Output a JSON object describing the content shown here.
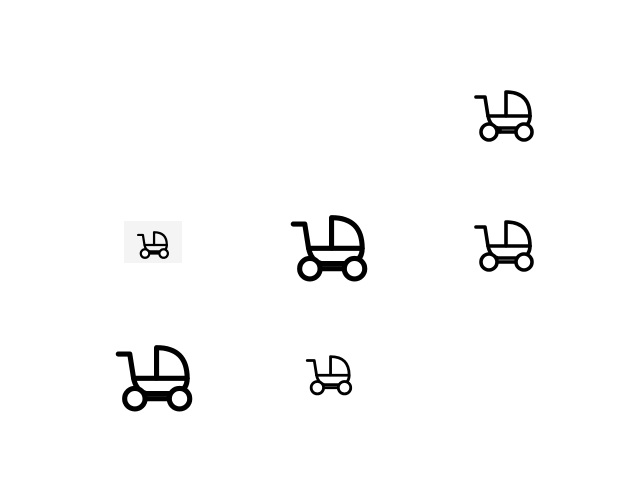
{
  "icons": [
    {
      "id": "s1",
      "name": "stroller-icon",
      "stroke": "#000000",
      "weight": "bold"
    },
    {
      "id": "s2",
      "name": "stroller-icon",
      "stroke": "#000000",
      "weight": "bold"
    },
    {
      "id": "s3",
      "name": "stroller-icon",
      "stroke": "#000000",
      "weight": "bold"
    },
    {
      "id": "s4",
      "name": "stroller-icon",
      "stroke": "#000000",
      "weight": "thin"
    },
    {
      "id": "s5",
      "name": "stroller-icon",
      "stroke": "#000000",
      "weight": "bold"
    },
    {
      "id": "s6",
      "name": "stroller-icon",
      "stroke": "#000000",
      "weight": "regular"
    }
  ],
  "colors": {
    "background": "#ffffff",
    "icon": "#000000",
    "tile": "#f4f4f4"
  }
}
